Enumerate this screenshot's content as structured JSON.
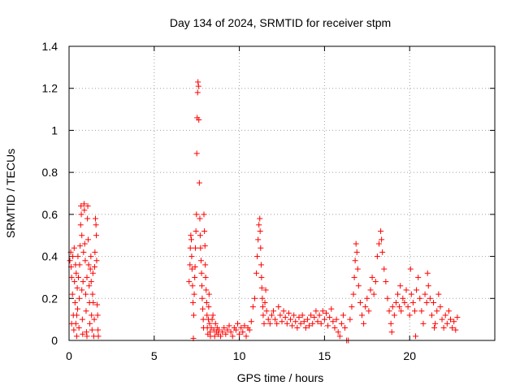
{
  "chart_data": {
    "type": "scatter",
    "title": "Day 134 of 2024, SRMTID for receiver stpm",
    "xlabel": "GPS time / hours",
    "ylabel": "SRMTID / TECUs",
    "xlim": [
      0,
      25
    ],
    "ylim": [
      0,
      1.4
    ],
    "x_ticks": [
      0,
      5,
      10,
      15,
      20
    ],
    "x_tick_labels": [
      "0",
      "5",
      "10",
      "15",
      "20"
    ],
    "y_ticks": [
      0,
      0.2,
      0.4,
      0.6,
      0.8,
      1.0,
      1.2,
      1.4
    ],
    "y_tick_labels": [
      "0",
      "0.2",
      "0.4",
      "0.6",
      "0.8",
      "1",
      "1.2",
      "1.4"
    ],
    "grid": true,
    "marker": "plus",
    "series": [
      {
        "name": "SRMTID",
        "color": "#ff0000",
        "points": [
          [
            0.05,
            0.38
          ],
          [
            0.1,
            0.42
          ],
          [
            0.12,
            0.35
          ],
          [
            0.15,
            0.3
          ],
          [
            0.2,
            0.22
          ],
          [
            0.22,
            0.4
          ],
          [
            0.25,
            0.12
          ],
          [
            0.28,
            0.05
          ],
          [
            0.3,
            0.44
          ],
          [
            0.32,
            0.28
          ],
          [
            0.35,
            0.18
          ],
          [
            0.38,
            0.36
          ],
          [
            0.4,
            0.08
          ],
          [
            0.42,
            0.32
          ],
          [
            0.45,
            0.02
          ],
          [
            0.48,
            0.25
          ],
          [
            0.5,
            0.15
          ],
          [
            0.52,
            0.4
          ],
          [
            0.55,
            0.3
          ],
          [
            0.58,
            0.06
          ],
          [
            0.6,
            0.2
          ],
          [
            0.62,
            0.36
          ],
          [
            0.65,
            0.45
          ],
          [
            0.68,
            0.55
          ],
          [
            0.7,
            0.64
          ],
          [
            0.72,
            0.6
          ],
          [
            0.75,
            0.5
          ],
          [
            0.78,
            0.1
          ],
          [
            0.8,
            0.03
          ],
          [
            0.82,
            0.28
          ],
          [
            0.85,
            0.42
          ],
          [
            0.88,
            0.65
          ],
          [
            0.9,
            0.62
          ],
          [
            0.92,
            0.46
          ],
          [
            0.95,
            0.38
          ],
          [
            0.98,
            0.22
          ],
          [
            1.0,
            0.14
          ],
          [
            1.02,
            0.04
          ],
          [
            1.05,
            0.3
          ],
          [
            1.08,
            0.58
          ],
          [
            1.1,
            0.64
          ],
          [
            1.12,
            0.48
          ],
          [
            1.15,
            0.36
          ],
          [
            1.18,
            0.26
          ],
          [
            1.2,
            0.18
          ],
          [
            1.22,
            0.08
          ],
          [
            1.25,
            0.34
          ],
          [
            1.28,
            0.4
          ],
          [
            1.3,
            0.28
          ],
          [
            1.32,
            0.12
          ],
          [
            1.35,
            0.05
          ],
          [
            1.38,
            0.22
          ],
          [
            1.4,
            0.32
          ],
          [
            1.42,
            0.18
          ],
          [
            1.45,
            0.02
          ],
          [
            1.48,
            0.1
          ],
          [
            1.5,
            0.35
          ],
          [
            1.52,
            0.42
          ],
          [
            1.55,
            0.58
          ],
          [
            1.58,
            0.55
          ],
          [
            1.6,
            0.5
          ],
          [
            1.62,
            0.38
          ],
          [
            1.65,
            0.17
          ],
          [
            1.68,
            0.12
          ],
          [
            1.7,
            0.05
          ],
          [
            1.72,
            0.02
          ],
          [
            0.15,
            0.08
          ],
          [
            0.45,
            0.12
          ],
          [
            0.75,
            0.24
          ],
          [
            1.05,
            0.02
          ],
          [
            7.05,
            0.28
          ],
          [
            7.1,
            0.36
          ],
          [
            7.12,
            0.44
          ],
          [
            7.15,
            0.5
          ],
          [
            7.18,
            0.48
          ],
          [
            7.2,
            0.4
          ],
          [
            7.22,
            0.34
          ],
          [
            7.25,
            0.26
          ],
          [
            7.28,
            0.18
          ],
          [
            7.3,
            0.01
          ],
          [
            7.32,
            0.12
          ],
          [
            7.35,
            0.22
          ],
          [
            7.38,
            0.3
          ],
          [
            7.4,
            0.35
          ],
          [
            7.42,
            0.44
          ],
          [
            7.45,
            0.52
          ],
          [
            7.48,
            0.6
          ],
          [
            7.5,
            0.89
          ],
          [
            7.52,
            1.06
          ],
          [
            7.55,
            1.18
          ],
          [
            7.57,
            1.23
          ],
          [
            7.6,
            1.21
          ],
          [
            7.62,
            1.05
          ],
          [
            7.65,
            0.75
          ],
          [
            7.68,
            0.58
          ],
          [
            7.7,
            0.5
          ],
          [
            7.72,
            0.44
          ],
          [
            7.75,
            0.38
          ],
          [
            7.78,
            0.32
          ],
          [
            7.8,
            0.26
          ],
          [
            7.82,
            0.2
          ],
          [
            7.85,
            0.15
          ],
          [
            7.88,
            0.1
          ],
          [
            7.9,
            0.06
          ],
          [
            7.92,
            0.6
          ],
          [
            7.95,
            0.52
          ],
          [
            7.98,
            0.45
          ],
          [
            8.0,
            0.36
          ],
          [
            8.02,
            0.3
          ],
          [
            8.05,
            0.24
          ],
          [
            8.08,
            0.18
          ],
          [
            8.1,
            0.12
          ],
          [
            8.12,
            0.06
          ],
          [
            8.15,
            0.03
          ],
          [
            8.18,
            0.1
          ],
          [
            8.2,
            0.16
          ],
          [
            8.22,
            0.22
          ],
          [
            8.25,
            0.08
          ],
          [
            8.28,
            0.04
          ],
          [
            8.3,
            0.02
          ],
          [
            8.35,
            0.06
          ],
          [
            8.4,
            0.1
          ],
          [
            8.45,
            0.12
          ],
          [
            8.5,
            0.05
          ],
          [
            8.55,
            0.02
          ],
          [
            8.6,
            0.08
          ],
          [
            8.65,
            0.04
          ],
          [
            8.7,
            0.06
          ],
          [
            8.75,
            0.03
          ],
          [
            8.8,
            0.05
          ],
          [
            8.9,
            0.02
          ],
          [
            9.0,
            0.04
          ],
          [
            9.1,
            0.06
          ],
          [
            9.2,
            0.03
          ],
          [
            9.3,
            0.05
          ],
          [
            9.4,
            0.07
          ],
          [
            9.5,
            0.04
          ],
          [
            9.6,
            0.02
          ],
          [
            9.7,
            0.06
          ],
          [
            9.8,
            0.05
          ],
          [
            9.9,
            0.08
          ],
          [
            10.0,
            0.03
          ],
          [
            10.1,
            0.06
          ],
          [
            10.2,
            0.04
          ],
          [
            10.3,
            0.07
          ],
          [
            10.4,
            0.02
          ],
          [
            10.5,
            0.06
          ],
          [
            10.6,
            0.05
          ],
          [
            10.7,
            0.09
          ],
          [
            10.8,
            0.16
          ],
          [
            10.9,
            0.2
          ],
          [
            11.0,
            0.32
          ],
          [
            11.05,
            0.4
          ],
          [
            11.1,
            0.48
          ],
          [
            11.15,
            0.55
          ],
          [
            11.2,
            0.58
          ],
          [
            11.22,
            0.52
          ],
          [
            11.25,
            0.44
          ],
          [
            11.28,
            0.36
          ],
          [
            11.3,
            0.3
          ],
          [
            11.32,
            0.25
          ],
          [
            11.35,
            0.2
          ],
          [
            11.38,
            0.16
          ],
          [
            11.4,
            0.12
          ],
          [
            11.45,
            0.08
          ],
          [
            11.5,
            0.18
          ],
          [
            11.55,
            0.24
          ],
          [
            11.6,
            0.14
          ],
          [
            11.7,
            0.1
          ],
          [
            11.8,
            0.08
          ],
          [
            11.9,
            0.12
          ],
          [
            12.0,
            0.14
          ],
          [
            12.1,
            0.1
          ],
          [
            12.2,
            0.08
          ],
          [
            12.3,
            0.16
          ],
          [
            12.4,
            0.12
          ],
          [
            12.5,
            0.09
          ],
          [
            12.6,
            0.14
          ],
          [
            12.7,
            0.11
          ],
          [
            12.8,
            0.08
          ],
          [
            12.9,
            0.13
          ],
          [
            13.0,
            0.1
          ],
          [
            13.1,
            0.07
          ],
          [
            13.2,
            0.12
          ],
          [
            13.3,
            0.09
          ],
          [
            13.4,
            0.06
          ],
          [
            13.5,
            0.11
          ],
          [
            13.6,
            0.08
          ],
          [
            13.7,
            0.12
          ],
          [
            13.8,
            0.09
          ],
          [
            13.9,
            0.06
          ],
          [
            14.0,
            0.1
          ],
          [
            14.1,
            0.07
          ],
          [
            14.2,
            0.12
          ],
          [
            14.3,
            0.08
          ],
          [
            14.4,
            0.11
          ],
          [
            14.5,
            0.14
          ],
          [
            14.6,
            0.09
          ],
          [
            14.7,
            0.12
          ],
          [
            14.8,
            0.08
          ],
          [
            14.9,
            0.14
          ],
          [
            15.0,
            0.1
          ],
          [
            15.1,
            0.13
          ],
          [
            15.2,
            0.07
          ],
          [
            15.3,
            0.11
          ],
          [
            15.4,
            0.15
          ],
          [
            15.5,
            0.09
          ],
          [
            15.6,
            0.06
          ],
          [
            15.7,
            0.1
          ],
          [
            15.8,
            0.04
          ],
          [
            15.9,
            0.02
          ],
          [
            16.0,
            0.08
          ],
          [
            16.1,
            0.12
          ],
          [
            16.2,
            0.06
          ],
          [
            16.3,
            0.0
          ],
          [
            16.4,
            0.0
          ],
          [
            16.5,
            0.1
          ],
          [
            16.6,
            0.16
          ],
          [
            16.7,
            0.22
          ],
          [
            16.75,
            0.3
          ],
          [
            16.8,
            0.38
          ],
          [
            16.85,
            0.46
          ],
          [
            16.9,
            0.42
          ],
          [
            16.95,
            0.34
          ],
          [
            17.0,
            0.26
          ],
          [
            17.1,
            0.18
          ],
          [
            17.2,
            0.12
          ],
          [
            17.3,
            0.08
          ],
          [
            17.4,
            0.16
          ],
          [
            17.5,
            0.2
          ],
          [
            17.6,
            0.14
          ],
          [
            17.7,
            0.24
          ],
          [
            17.8,
            0.3
          ],
          [
            17.9,
            0.22
          ],
          [
            18.0,
            0.28
          ],
          [
            18.1,
            0.4
          ],
          [
            18.2,
            0.46
          ],
          [
            18.3,
            0.52
          ],
          [
            18.35,
            0.48
          ],
          [
            18.4,
            0.42
          ],
          [
            18.5,
            0.34
          ],
          [
            18.6,
            0.28
          ],
          [
            18.7,
            0.2
          ],
          [
            18.8,
            0.14
          ],
          [
            18.9,
            0.08
          ],
          [
            19.0,
            0.16
          ],
          [
            19.1,
            0.12
          ],
          [
            19.2,
            0.18
          ],
          [
            19.3,
            0.22
          ],
          [
            19.4,
            0.16
          ],
          [
            19.5,
            0.14
          ],
          [
            19.6,
            0.2
          ],
          [
            19.7,
            0.18
          ],
          [
            19.8,
            0.24
          ],
          [
            19.9,
            0.16
          ],
          [
            20.0,
            0.12
          ],
          [
            20.1,
            0.22
          ],
          [
            20.2,
            0.18
          ],
          [
            20.3,
            0.14
          ],
          [
            20.4,
            0.24
          ],
          [
            20.5,
            0.3
          ],
          [
            20.6,
            0.2
          ],
          [
            20.7,
            0.14
          ],
          [
            20.8,
            0.08
          ],
          [
            20.9,
            0.22
          ],
          [
            21.0,
            0.18
          ],
          [
            21.1,
            0.26
          ],
          [
            21.2,
            0.2
          ],
          [
            21.3,
            0.12
          ],
          [
            21.4,
            0.18
          ],
          [
            21.5,
            0.08
          ],
          [
            21.6,
            0.14
          ],
          [
            21.7,
            0.22
          ],
          [
            21.8,
            0.16
          ],
          [
            21.9,
            0.1
          ],
          [
            22.0,
            0.06
          ],
          [
            22.1,
            0.12
          ],
          [
            22.2,
            0.08
          ],
          [
            22.3,
            0.14
          ],
          [
            22.4,
            0.1
          ],
          [
            22.5,
            0.06
          ],
          [
            22.6,
            0.09
          ],
          [
            22.7,
            0.05
          ],
          [
            22.8,
            0.11
          ],
          [
            20.05,
            0.34
          ],
          [
            21.05,
            0.32
          ],
          [
            19.45,
            0.26
          ],
          [
            18.95,
            0.04
          ],
          [
            20.35,
            0.02
          ],
          [
            21.45,
            0.06
          ]
        ]
      }
    ]
  }
}
